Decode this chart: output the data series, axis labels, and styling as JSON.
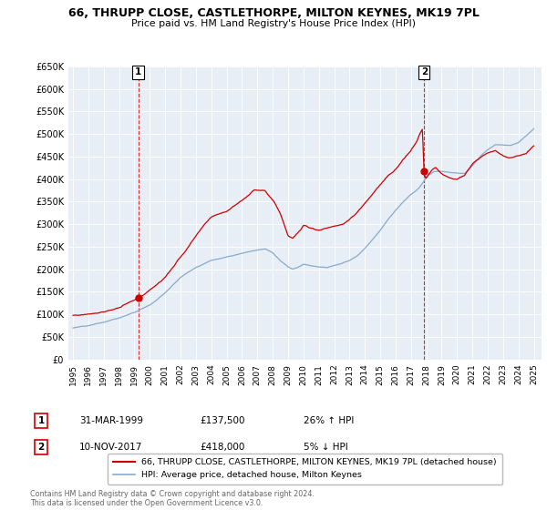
{
  "title": "66, THRUPP CLOSE, CASTLETHORPE, MILTON KEYNES, MK19 7PL",
  "subtitle": "Price paid vs. HM Land Registry's House Price Index (HPI)",
  "legend_line1": "66, THRUPP CLOSE, CASTLETHORPE, MILTON KEYNES, MK19 7PL (detached house)",
  "legend_line2": "HPI: Average price, detached house, Milton Keynes",
  "annotation1_label": "1",
  "annotation1_date": "31-MAR-1999",
  "annotation1_price": "£137,500",
  "annotation1_hpi": "26% ↑ HPI",
  "annotation2_label": "2",
  "annotation2_date": "10-NOV-2017",
  "annotation2_price": "£418,000",
  "annotation2_hpi": "5% ↓ HPI",
  "footer": "Contains HM Land Registry data © Crown copyright and database right 2024.\nThis data is licensed under the Open Government Licence v3.0.",
  "red_color": "#cc0000",
  "blue_color": "#88aacc",
  "ylim": [
    0,
    650000
  ],
  "yticks": [
    0,
    50000,
    100000,
    150000,
    200000,
    250000,
    300000,
    350000,
    400000,
    450000,
    500000,
    550000,
    600000,
    650000
  ],
  "ytick_labels": [
    "£0",
    "£50K",
    "£100K",
    "£150K",
    "£200K",
    "£250K",
    "£300K",
    "£350K",
    "£400K",
    "£450K",
    "£500K",
    "£550K",
    "£600K",
    "£650K"
  ],
  "background_color": "#ffffff",
  "chart_bg_color": "#e8eef5",
  "grid_color": "#ffffff",
  "purchase1_year": 1999.25,
  "purchase1_price": 137500,
  "purchase2_year": 2017.86,
  "purchase2_price": 418000
}
